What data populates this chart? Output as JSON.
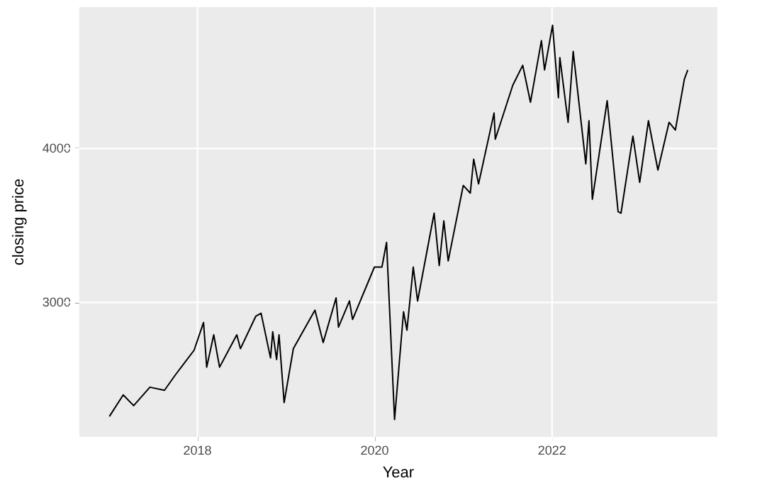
{
  "chart_data": {
    "type": "line",
    "xlabel": "Year",
    "ylabel": "closing price",
    "x": [
      "2017-01-03",
      "2017-03-01",
      "2017-04-13",
      "2017-06-19",
      "2017-08-18",
      "2017-10-02",
      "2017-12-18",
      "2018-01-26",
      "2018-02-08",
      "2018-03-09",
      "2018-04-02",
      "2018-06-12",
      "2018-06-27",
      "2018-08-29",
      "2018-09-20",
      "2018-10-29",
      "2018-11-07",
      "2018-11-23",
      "2018-12-03",
      "2018-12-24",
      "2019-01-31",
      "2019-04-30",
      "2019-06-03",
      "2019-07-26",
      "2019-08-05",
      "2019-09-19",
      "2019-10-02",
      "2019-12-31",
      "2020-01-31",
      "2020-02-19",
      "2020-03-23",
      "2020-04-29",
      "2020-05-13",
      "2020-06-08",
      "2020-06-26",
      "2020-09-02",
      "2020-09-23",
      "2020-10-12",
      "2020-10-30",
      "2020-12-31",
      "2021-01-29",
      "2021-02-12",
      "2021-03-04",
      "2021-05-07",
      "2021-05-12",
      "2021-07-23",
      "2021-09-02",
      "2021-10-04",
      "2021-11-18",
      "2021-12-01",
      "2022-01-03",
      "2022-01-27",
      "2022-02-02",
      "2022-03-08",
      "2022-03-29",
      "2022-05-20",
      "2022-06-02",
      "2022-06-16",
      "2022-08-16",
      "2022-09-30",
      "2022-10-12",
      "2022-11-30",
      "2022-12-28",
      "2023-02-02",
      "2023-03-13",
      "2023-04-28",
      "2023-05-24",
      "2023-06-30",
      "2023-07-14"
    ],
    "series": [
      {
        "color": "#000000",
        "values": [
          2260,
          2400,
          2330,
          2450,
          2430,
          2530,
          2690,
          2870,
          2580,
          2790,
          2580,
          2790,
          2700,
          2910,
          2930,
          2640,
          2810,
          2630,
          2790,
          2350,
          2700,
          2950,
          2740,
          3030,
          2840,
          3010,
          2890,
          3230,
          3230,
          3390,
          2240,
          2940,
          2820,
          3230,
          3010,
          3580,
          3240,
          3530,
          3270,
          3760,
          3710,
          3930,
          3770,
          4230,
          4060,
          4410,
          4540,
          4300,
          4700,
          4510,
          4800,
          4330,
          4590,
          4170,
          4630,
          3900,
          4180,
          3670,
          4310,
          3590,
          3580,
          4080,
          3780,
          4180,
          3860,
          4170,
          4120,
          4450,
          4510
        ]
      }
    ],
    "xlim": [
      "2016-09-01",
      "2023-11-13"
    ],
    "xticks": [
      "2018",
      "2020",
      "2022"
    ],
    "ylim": [
      2127,
      4918
    ],
    "yticks": [
      3000,
      4000
    ],
    "grid": true,
    "marker": "none",
    "line_style": "solid"
  }
}
